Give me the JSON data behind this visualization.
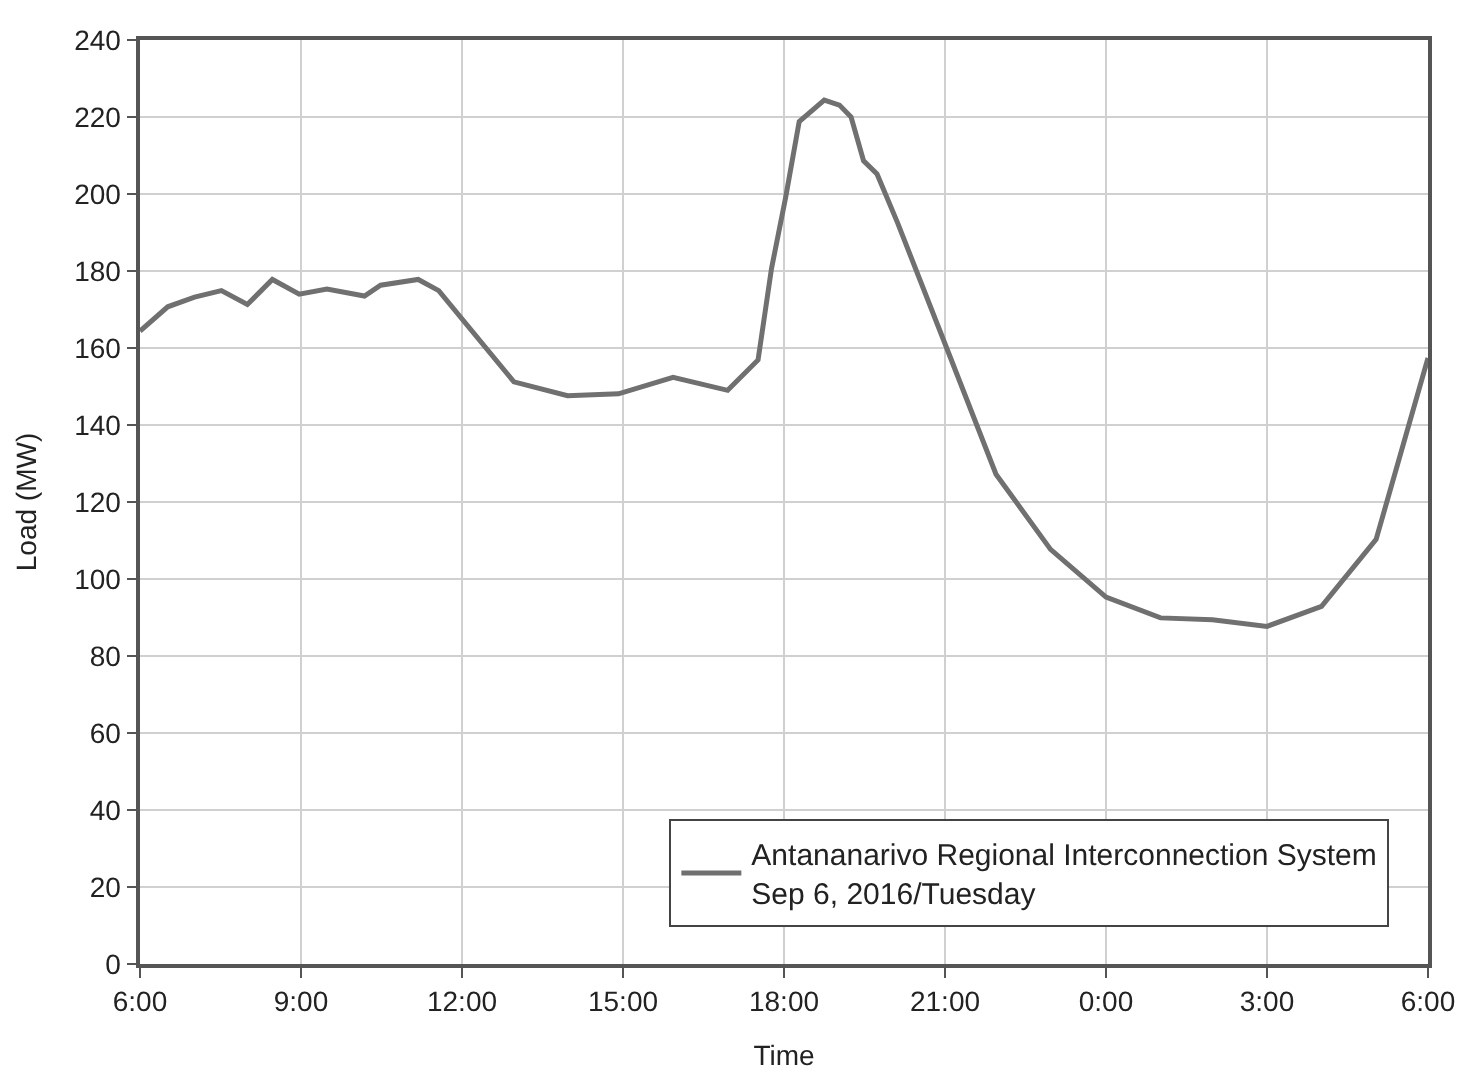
{
  "chart_data": {
    "type": "line",
    "xlabel": "Time",
    "ylabel": "Load (MW)",
    "xlim": [
      "2016-09-06T06:00",
      "2016-09-07T06:00"
    ],
    "xticks": [
      {
        "value": "2016-09-06T06:00",
        "label": "6:00"
      },
      {
        "value": "2016-09-06T09:00",
        "label": "9:00"
      },
      {
        "value": "2016-09-06T12:00",
        "label": "12:00"
      },
      {
        "value": "2016-09-06T15:00",
        "label": "15:00"
      },
      {
        "value": "2016-09-06T18:00",
        "label": "18:00"
      },
      {
        "value": "2016-09-06T21:00",
        "label": "21:00"
      },
      {
        "value": "2016-09-07T00:00",
        "label": "0:00"
      },
      {
        "value": "2016-09-07T03:00",
        "label": "3:00"
      },
      {
        "value": "2016-09-07T06:00",
        "label": "6:00"
      }
    ],
    "ylim": [
      0,
      240
    ],
    "yticks": [
      0,
      20,
      40,
      60,
      80,
      100,
      120,
      140,
      160,
      180,
      200,
      220,
      240
    ],
    "grid": true,
    "legend": "bottom right",
    "marker": "none",
    "line_style": "solid",
    "series": [
      {
        "name": "Antananarivo Regional Interconnection System\nSep 6, 2016/Tuesday",
        "color": "#707070",
        "x": [
          "2016-09-06T06:00",
          "2016-09-06T06:31",
          "2016-09-06T07:01",
          "2016-09-06T07:31",
          "2016-09-06T08:00",
          "2016-09-06T08:28",
          "2016-09-06T08:58",
          "2016-09-06T09:29",
          "2016-09-06T10:11",
          "2016-09-06T10:29",
          "2016-09-06T11:11",
          "2016-09-06T11:34",
          "2016-09-06T12:58",
          "2016-09-06T13:58",
          "2016-09-06T14:55",
          "2016-09-06T15:56",
          "2016-09-06T16:57",
          "2016-09-06T17:31",
          "2016-09-06T17:46",
          "2016-09-06T18:02",
          "2016-09-06T18:17",
          "2016-09-06T18:45",
          "2016-09-06T19:02",
          "2016-09-06T19:15",
          "2016-09-06T19:29",
          "2016-09-06T19:44",
          "2016-09-06T20:07",
          "2016-09-06T21:00",
          "2016-09-06T21:57",
          "2016-09-06T22:58",
          "2016-09-07T00:00",
          "2016-09-07T01:01",
          "2016-09-07T01:59",
          "2016-09-07T03:00",
          "2016-09-07T04:01",
          "2016-09-07T05:02",
          "2016-09-07T06:00"
        ],
        "values": [
          164.4,
          170.7,
          173.2,
          174.9,
          171.3,
          177.8,
          174.0,
          175.3,
          173.5,
          176.3,
          177.8,
          174.9,
          151.2,
          147.6,
          148.1,
          152.4,
          149.0,
          156.9,
          180.6,
          199.3,
          218.8,
          224.4,
          223.1,
          220.0,
          208.6,
          205.2,
          192.5,
          161.1,
          127.2,
          107.7,
          95.3,
          89.9,
          89.4,
          87.7,
          92.9,
          110.3,
          157.4
        ]
      }
    ]
  }
}
